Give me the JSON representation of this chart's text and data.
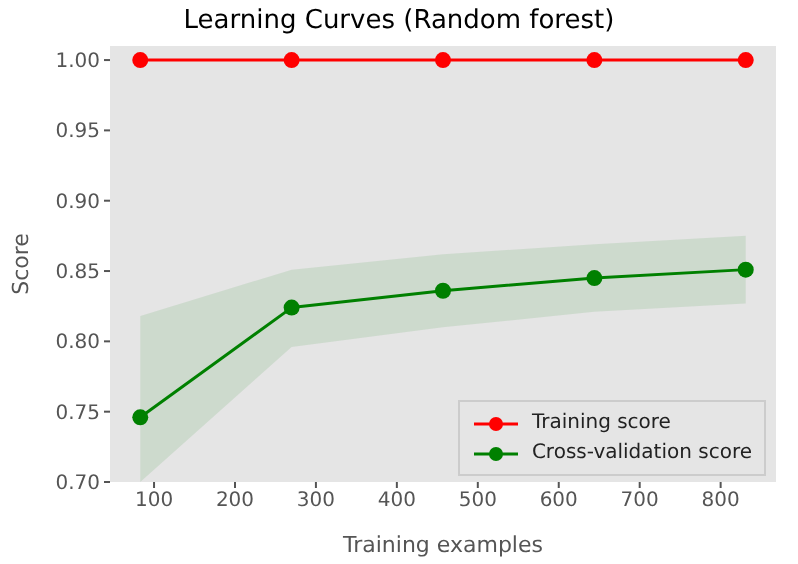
{
  "chart_data": {
    "type": "line",
    "title": "Learning Curves (Random forest)",
    "xlabel": "Training examples",
    "ylabel": "Score",
    "x": [
      83,
      270,
      457,
      644,
      831
    ],
    "series": [
      {
        "name": "Training score",
        "color": "#ff0000",
        "values": [
          1.0,
          1.0,
          1.0,
          1.0,
          1.0
        ]
      },
      {
        "name": "Cross-validation score",
        "color": "#008000",
        "values": [
          0.746,
          0.824,
          0.836,
          0.845,
          0.851
        ],
        "lower": [
          0.7,
          0.796,
          0.81,
          0.821,
          0.827
        ],
        "upper": [
          0.818,
          0.851,
          0.862,
          0.869,
          0.875
        ]
      }
    ],
    "xlim": [
      45.6,
      868.4
    ],
    "xticks": [
      100,
      200,
      300,
      400,
      500,
      600,
      700,
      800
    ],
    "ylim": [
      0.7,
      1.01
    ],
    "yticks": [
      {
        "value": 0.7,
        "label": "0.70"
      },
      {
        "value": 0.75,
        "label": "0.75"
      },
      {
        "value": 0.8,
        "label": "0.80"
      },
      {
        "value": 0.85,
        "label": "0.85"
      },
      {
        "value": 0.9,
        "label": "0.90"
      },
      {
        "value": 0.95,
        "label": "0.95"
      },
      {
        "value": 1.0,
        "label": "1.00"
      }
    ],
    "legend": "bottom right",
    "marker": "circle",
    "line_style": "solid"
  }
}
